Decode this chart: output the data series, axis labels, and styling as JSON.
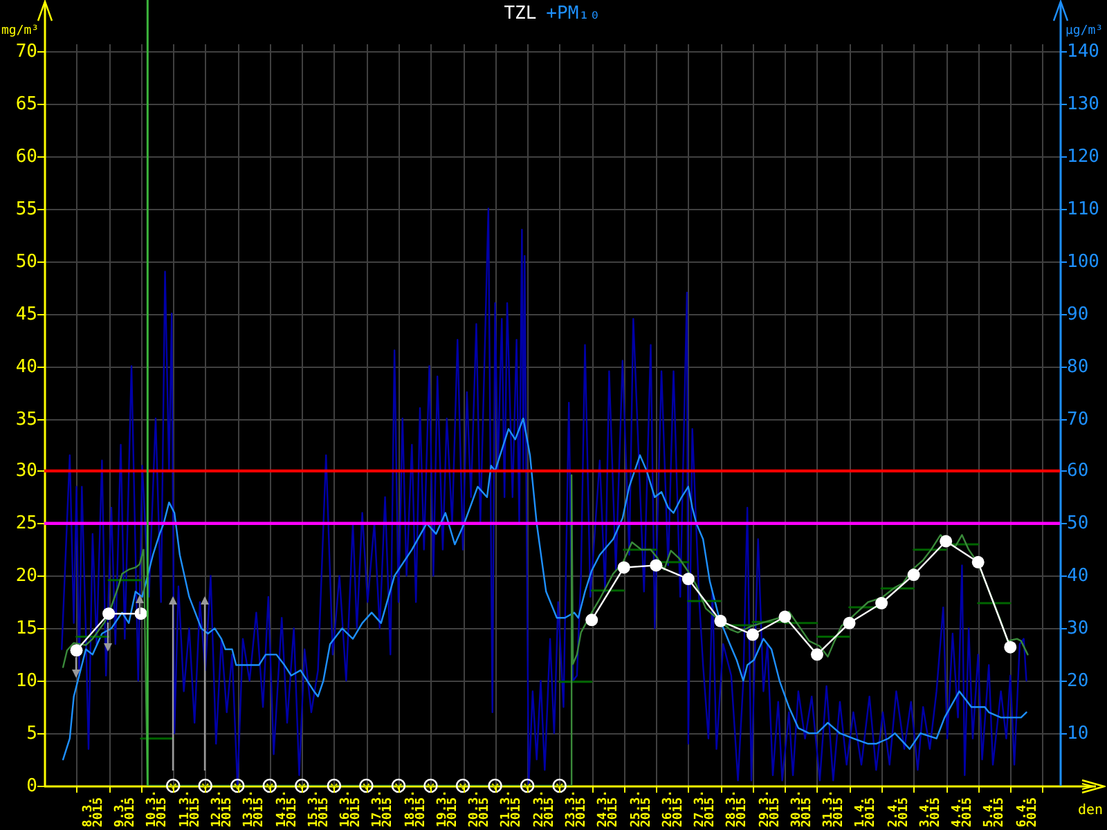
{
  "chart_data": {
    "type": "line",
    "legend": "top",
    "grid": true,
    "xlabel": "den",
    "ylabel": "mg/m³",
    "y2label": "µg/m³",
    "xlim": [
      "2015-03-07T00:00",
      "2015-04-07T13:00"
    ],
    "xticks": [
      {
        "value": "2015-03-08",
        "label": null
      },
      {
        "value": "2015-03-08T12:00",
        "label": "8.3. 2015"
      },
      {
        "value": "2015-03-09",
        "label": null
      },
      {
        "value": "2015-03-09T12:00",
        "label": "9.3. 2015"
      },
      {
        "value": "2015-03-10",
        "label": null
      },
      {
        "value": "2015-03-10T12:00",
        "label": "10.3. 2015"
      },
      {
        "value": "2015-03-11",
        "label": null
      },
      {
        "value": "2015-03-11T12:00",
        "label": "11.3. 2015"
      },
      {
        "value": "2015-03-12",
        "label": null
      },
      {
        "value": "2015-03-12T12:00",
        "label": "12.3. 2015"
      },
      {
        "value": "2015-03-13",
        "label": null
      },
      {
        "value": "2015-03-13T12:00",
        "label": "13.3. 2015"
      },
      {
        "value": "2015-03-14",
        "label": null
      },
      {
        "value": "2015-03-14T12:00",
        "label": "14.3. 2015"
      },
      {
        "value": "2015-03-15",
        "label": null
      },
      {
        "value": "2015-03-15T12:00",
        "label": "15.3. 2015"
      },
      {
        "value": "2015-03-16",
        "label": null
      },
      {
        "value": "2015-03-16T12:00",
        "label": "16.3. 2015"
      },
      {
        "value": "2015-03-17",
        "label": null
      },
      {
        "value": "2015-03-17T12:00",
        "label": "17.3. 2015"
      },
      {
        "value": "2015-03-18",
        "label": null
      },
      {
        "value": "2015-03-18T12:00",
        "label": "18.3. 2015"
      },
      {
        "value": "2015-03-19",
        "label": null
      },
      {
        "value": "2015-03-19T12:00",
        "label": "19.3. 2015"
      },
      {
        "value": "2015-03-20",
        "label": null
      },
      {
        "value": "2015-03-20T12:00",
        "label": "20.3. 2015"
      },
      {
        "value": "2015-03-21",
        "label": null
      },
      {
        "value": "2015-03-21T12:00",
        "label": "21.3. 2015"
      },
      {
        "value": "2015-03-22",
        "label": null
      },
      {
        "value": "2015-03-22T12:00",
        "label": "22.3. 2015"
      },
      {
        "value": "2015-03-23",
        "label": null
      },
      {
        "value": "2015-03-23T12:00",
        "label": "23.3. 2015"
      },
      {
        "value": "2015-03-24",
        "label": null
      },
      {
        "value": "2015-03-24T12:00",
        "label": "24.3. 2015"
      },
      {
        "value": "2015-03-25",
        "label": null
      },
      {
        "value": "2015-03-25T12:00",
        "label": "25.3. 2015"
      },
      {
        "value": "2015-03-26",
        "label": null
      },
      {
        "value": "2015-03-26T12:00",
        "label": "26.3. 2015"
      },
      {
        "value": "2015-03-27",
        "label": null
      },
      {
        "value": "2015-03-27T12:00",
        "label": "27.3. 2015"
      },
      {
        "value": "2015-03-28",
        "label": null
      },
      {
        "value": "2015-03-28T12:00",
        "label": "28.3. 2015"
      },
      {
        "value": "2015-03-29",
        "label": null
      },
      {
        "value": "2015-03-29T12:00",
        "label": "29.3. 2015"
      },
      {
        "value": "2015-03-30",
        "label": null
      },
      {
        "value": "2015-03-30T12:00",
        "label": "30.3. 2015"
      },
      {
        "value": "2015-03-31",
        "label": null
      },
      {
        "value": "2015-03-31T12:00",
        "label": "31.3. 2015"
      },
      {
        "value": "2015-04-01",
        "label": null
      },
      {
        "value": "2015-04-01T12:00",
        "label": "1.4. 2015"
      },
      {
        "value": "2015-04-02",
        "label": null
      },
      {
        "value": "2015-04-02T12:00",
        "label": "2.4. 2015"
      },
      {
        "value": "2015-04-03",
        "label": null
      },
      {
        "value": "2015-04-03T12:00",
        "label": "3.4. 2015"
      },
      {
        "value": "2015-04-04",
        "label": null
      },
      {
        "value": "2015-04-04T12:00",
        "label": "4.4. 2015"
      },
      {
        "value": "2015-04-05",
        "label": null
      },
      {
        "value": "2015-04-05T12:00",
        "label": "5.4. 2015"
      },
      {
        "value": "2015-04-06",
        "label": null
      },
      {
        "value": "2015-04-06T12:00",
        "label": "6.4. 2015"
      },
      {
        "value": "2015-04-07",
        "label": null
      }
    ],
    "ylim": [
      0,
      70
    ],
    "yticks": [
      0,
      5,
      10,
      15,
      20,
      25,
      30,
      35,
      40,
      45,
      50,
      55,
      60,
      65,
      70
    ],
    "y2lim": [
      0,
      140
    ],
    "y2ticks": [
      10,
      20,
      30,
      40,
      50,
      60,
      70,
      80,
      90,
      100,
      110,
      120,
      130,
      140
    ],
    "series": [
      {
        "name": "TZL",
        "color": "#ffffff",
        "marker": "circle",
        "x": [
          "2015-03-08",
          "2015-03-09",
          "2015-03-10",
          "2015-03-11",
          "2015-03-12",
          "2015-03-13",
          "2015-03-14",
          "2015-03-15",
          "2015-03-16",
          "2015-03-17",
          "2015-03-18",
          "2015-03-19",
          "2015-03-20",
          "2015-03-21",
          "2015-03-22",
          "2015-03-23",
          "2015-03-24",
          "2015-03-25",
          "2015-03-26",
          "2015-03-27",
          "2015-03-28",
          "2015-03-29",
          "2015-03-30",
          "2015-03-31",
          "2015-04-01",
          "2015-04-02",
          "2015-04-03",
          "2015-04-04",
          "2015-04-05",
          "2015-04-06"
        ],
        "values": [
          12.9,
          16.4,
          16.4,
          null,
          null,
          null,
          null,
          null,
          null,
          null,
          null,
          null,
          null,
          null,
          null,
          null,
          15.8,
          20.8,
          21.0,
          19.7,
          15.7,
          14.4,
          16.1,
          12.5,
          15.5,
          17.4,
          20.1,
          23.3,
          21.3,
          13.2
        ]
      },
      {
        "type": "scatter",
        "color": "#ffffff",
        "marker": "circle",
        "x": [
          "2015-03-11",
          "2015-03-12",
          "2015-03-13",
          "2015-03-14",
          "2015-03-15",
          "2015-03-16",
          "2015-03-17",
          "2015-03-18",
          "2015-03-19",
          "2015-03-20",
          "2015-03-21",
          "2015-03-22",
          "2015-03-23"
        ],
        "values": [
          0,
          0,
          0,
          0,
          0,
          0,
          0,
          0,
          0,
          0,
          0,
          0,
          0
        ]
      },
      {
        "color": "#3a8a3a",
        "x": [
          "2015-03-07T14:00",
          "2015-03-07T17:00",
          "2015-03-07T22:00",
          "2015-03-08T07:00",
          "2015-03-08T12:00",
          "2015-03-08T21:00",
          "2015-03-09T02:00",
          "2015-03-09T07:00",
          "2015-03-09T10:00",
          "2015-03-09T15:00",
          "2015-03-09T20:00",
          "2015-03-09T23:00",
          "2015-03-10T02:00",
          "2015-03-10T05:00",
          "2015-03-23T09:00",
          "2015-03-23T09:00",
          "2015-03-23T10:00",
          "2015-03-23T13:00",
          "2015-03-23T16:00",
          "2015-03-24T00:00",
          "2015-03-24T06:00",
          "2015-03-24T16:00",
          "2015-03-24T23:00",
          "2015-03-25T06:00",
          "2015-03-25T13:00",
          "2015-03-25T20:00",
          "2015-03-26T01:00",
          "2015-03-26T06:00",
          "2015-03-26T11:00",
          "2015-03-26T17:00",
          "2015-03-27T00:00",
          "2015-03-27T06:00",
          "2015-03-27T13:00",
          "2015-03-27T21:00",
          "2015-03-28T07:00",
          "2015-03-28T13:00",
          "2015-03-28T23:00",
          "2015-03-29T09:00",
          "2015-03-29T20:00",
          "2015-03-30T03:00",
          "2015-03-30T10:00",
          "2015-03-30T18:00",
          "2015-03-31T02:00",
          "2015-03-31T08:00",
          "2015-03-31T13:00",
          "2015-03-31T18:00",
          "2015-04-01T03:00",
          "2015-04-01T14:00",
          "2015-04-02T00:00",
          "2015-04-02T10:00",
          "2015-04-02T16:00",
          "2015-04-02T23:00",
          "2015-04-03T07:00",
          "2015-04-03T13:00",
          "2015-04-03T20:00",
          "2015-04-04T01:00",
          "2015-04-04T07:00",
          "2015-04-04T12:00",
          "2015-04-04T17:00",
          "2015-04-05T00:00",
          "2015-04-05T08:00",
          "2015-04-05T16:00",
          "2015-04-05T22:00",
          "2015-04-06T05:00",
          "2015-04-06T08:00",
          "2015-04-06T13:00"
        ],
        "values": [
          11.3,
          12.9,
          13.6,
          13.4,
          14.0,
          15.6,
          17.1,
          18.9,
          20.2,
          20.6,
          20.8,
          21.1,
          22.5,
          0,
          0,
          29.6,
          11.6,
          12.5,
          14.6,
          16.5,
          17.8,
          20.2,
          21.2,
          23.2,
          22.5,
          22.5,
          21.7,
          20.6,
          22.4,
          21.7,
          20.4,
          19.1,
          16.9,
          16.0,
          14.9,
          14.6,
          15.2,
          15.6,
          16.0,
          16.6,
          15.3,
          13.8,
          13.3,
          12.3,
          13.8,
          15.2,
          16.2,
          17.5,
          17.9,
          18.9,
          19.3,
          20.6,
          21.5,
          22.5,
          23.9,
          23.2,
          22.8,
          23.9,
          22.5,
          21.2,
          18.6,
          16.0,
          13.8,
          14.0,
          13.8,
          12.5
        ]
      },
      {
        "type": "step",
        "color": "#006400",
        "x": [
          "2015-03-08",
          "2015-03-09",
          "2015-03-10",
          "2015-03-11",
          "2015-03-12",
          "2015-03-13",
          "2015-03-14",
          "2015-03-15",
          "2015-03-16",
          "2015-03-17",
          "2015-03-18",
          "2015-03-19",
          "2015-03-20",
          "2015-03-21",
          "2015-03-22",
          "2015-03-23",
          "2015-03-24",
          "2015-03-25",
          "2015-03-26",
          "2015-03-27",
          "2015-03-28",
          "2015-03-29",
          "2015-03-30",
          "2015-03-31",
          "2015-04-01",
          "2015-04-02",
          "2015-04-03",
          "2015-04-04",
          "2015-04-05",
          "2015-04-06"
        ],
        "values": [
          14.2,
          19.6,
          4.5,
          null,
          null,
          null,
          null,
          null,
          null,
          null,
          null,
          null,
          null,
          null,
          null,
          9.9,
          18.6,
          22.5,
          21.3,
          17.6,
          15.3,
          15.6,
          15.5,
          14.2,
          17.0,
          18.8,
          22.5,
          23.0,
          17.4,
          17.4
        ]
      },
      {
        "name": "+PM₁₀",
        "color": "#1e90ff",
        "axis": "y2",
        "x": [
          "2015-03-07T14:00",
          "2015-03-07T19:00",
          "2015-03-07T22:00",
          "2015-03-08T02:00",
          "2015-03-08T07:00",
          "2015-03-08T12:00",
          "2015-03-08T19:00",
          "2015-03-09T02:00",
          "2015-03-09T10:00",
          "2015-03-09T15:00",
          "2015-03-09T20:00",
          "2015-03-10T01:00",
          "2015-03-10T09:00",
          "2015-03-10T14:00",
          "2015-03-10T17:00",
          "2015-03-10T21:00",
          "2015-03-11T01:00",
          "2015-03-11T05:00",
          "2015-03-11T12:00",
          "2015-03-11T21:00",
          "2015-03-12T02:00",
          "2015-03-12T07:00",
          "2015-03-12T12:00",
          "2015-03-12T15:00",
          "2015-03-12T20:00",
          "2015-03-12T23:00",
          "2015-03-13T06:00",
          "2015-03-13T16:00",
          "2015-03-13T21:00",
          "2015-03-14T05:00",
          "2015-03-14T11:00",
          "2015-03-14T16:00",
          "2015-03-14T23:00",
          "2015-03-15T04:00",
          "2015-03-15T09:00",
          "2015-03-15T12:00",
          "2015-03-15T16:00",
          "2015-03-15T21:00",
          "2015-03-16T06:00",
          "2015-03-16T14:00",
          "2015-03-16T21:00",
          "2015-03-17T04:00",
          "2015-03-17T11:00",
          "2015-03-17T21:00",
          "2015-03-18T10:00",
          "2015-03-18T21:00",
          "2015-03-19T04:00",
          "2015-03-19T11:00",
          "2015-03-19T18:00",
          "2015-03-20T01:00",
          "2015-03-20T11:00",
          "2015-03-20T18:00",
          "2015-03-20T21:00",
          "2015-03-21T00:00",
          "2015-03-21T10:00",
          "2015-03-21T15:00",
          "2015-03-21T21:00",
          "2015-03-22T02:00",
          "2015-03-22T07:00",
          "2015-03-22T14:00",
          "2015-03-22T22:00",
          "2015-03-23T04:00",
          "2015-03-23T11:00",
          "2015-03-23T14:00",
          "2015-03-23T19:00",
          "2015-03-24T00:00",
          "2015-03-24T06:00",
          "2015-03-24T16:00",
          "2015-03-24T23:00",
          "2015-03-25T04:00",
          "2015-03-25T12:00",
          "2015-03-25T17:00",
          "2015-03-25T23:00",
          "2015-03-26T04:00",
          "2015-03-26T09:00",
          "2015-03-26T13:00",
          "2015-03-26T19:00",
          "2015-03-27T00:00",
          "2015-03-27T03:00",
          "2015-03-27T06:00",
          "2015-03-27T11:00",
          "2015-03-27T16:00",
          "2015-03-27T23:00",
          "2015-03-28T07:00",
          "2015-03-28T12:00",
          "2015-03-28T17:00",
          "2015-03-28T20:00",
          "2015-03-29T01:00",
          "2015-03-29T08:00",
          "2015-03-29T14:00",
          "2015-03-29T20:00",
          "2015-03-30T03:00",
          "2015-03-30T10:00",
          "2015-03-30T18:00",
          "2015-03-31T00:00",
          "2015-03-31T08:00",
          "2015-03-31T17:00",
          "2015-04-01T03:00",
          "2015-04-01T14:00",
          "2015-04-01T20:00",
          "2015-04-02T05:00",
          "2015-04-02T10:00",
          "2015-04-02T21:00",
          "2015-04-03T05:00",
          "2015-04-03T17:00",
          "2015-04-03T23:00",
          "2015-04-04T10:00",
          "2015-04-04T19:00",
          "2015-04-05T05:00",
          "2015-04-05T08:00",
          "2015-04-05T17:00",
          "2015-04-06T03:00",
          "2015-04-06T08:00",
          "2015-04-06T12:00"
        ],
        "values": [
          5,
          9,
          17,
          21,
          26,
          25,
          29,
          30,
          33,
          31,
          37,
          36,
          44,
          48,
          50,
          54,
          52,
          44,
          36,
          30,
          29,
          30,
          28,
          26,
          26,
          23,
          23,
          23,
          25,
          25,
          23,
          21,
          22,
          20,
          18,
          17,
          20,
          27,
          30,
          28,
          31,
          33,
          31,
          40,
          45,
          50,
          48,
          52,
          46,
          50,
          57,
          55,
          61,
          60,
          68,
          66,
          70,
          63,
          50,
          37,
          32,
          32,
          33,
          32,
          37,
          41,
          44,
          47,
          51,
          57,
          63,
          60,
          55,
          56,
          53,
          52,
          55,
          57,
          53,
          50,
          47,
          39,
          32,
          27,
          24,
          20,
          23,
          24,
          28,
          26,
          20,
          15,
          11,
          10,
          10,
          12,
          10,
          9,
          8,
          8,
          9,
          10,
          7,
          10,
          9,
          13,
          18,
          15,
          15,
          14,
          13,
          13,
          13,
          14
        ]
      },
      {
        "color": "#0000a8",
        "axis": "y2",
        "x": [
          "2015-03-07T13:00",
          "2015-03-07T19:00",
          "2015-03-07T22:00",
          "2015-03-08T00:00",
          "2015-03-08T02:00",
          "2015-03-08T04:00",
          "2015-03-08T07:00",
          "2015-03-08T09:00",
          "2015-03-08T12:00",
          "2015-03-08T15:00",
          "2015-03-08T19:00",
          "2015-03-08T22:00",
          "2015-03-09T02:00",
          "2015-03-09T05:00",
          "2015-03-09T09:00",
          "2015-03-09T12:00",
          "2015-03-09T17:00",
          "2015-03-09T22:00",
          "2015-03-10T01:00",
          "2015-03-10T06:00",
          "2015-03-10T11:00",
          "2015-03-10T15:00",
          "2015-03-10T18:00",
          "2015-03-10T21:00",
          "2015-03-10T23:00",
          "2015-03-11T01:00",
          "2015-03-11T04:00",
          "2015-03-11T08:00",
          "2015-03-11T12:00",
          "2015-03-11T16:00",
          "2015-03-11T20:00",
          "2015-03-12T00:00",
          "2015-03-12T04:00",
          "2015-03-12T08:00",
          "2015-03-12T12:00",
          "2015-03-12T16:00",
          "2015-03-12T20:00",
          "2015-03-13T00:00",
          "2015-03-13T04:00",
          "2015-03-13T09:00",
          "2015-03-13T14:00",
          "2015-03-13T19:00",
          "2015-03-13T23:00",
          "2015-03-14T03:00",
          "2015-03-14T09:00",
          "2015-03-14T13:00",
          "2015-03-14T18:00",
          "2015-03-14T22:00",
          "2015-03-15T02:00",
          "2015-03-15T07:00",
          "2015-03-15T12:00",
          "2015-03-15T18:00",
          "2015-03-15T23:00",
          "2015-03-16T04:00",
          "2015-03-16T09:00",
          "2015-03-16T14:00",
          "2015-03-16T17:00",
          "2015-03-16T21:00",
          "2015-03-17T01:00",
          "2015-03-17T06:00",
          "2015-03-17T10:00",
          "2015-03-17T14:00",
          "2015-03-17T18:00",
          "2015-03-17T21:00",
          "2015-03-18T00:00",
          "2015-03-18T03:00",
          "2015-03-18T06:00",
          "2015-03-18T10:00",
          "2015-03-18T13:00",
          "2015-03-18T16:00",
          "2015-03-18T19:00",
          "2015-03-18T23:00",
          "2015-03-19T02:00",
          "2015-03-19T05:00",
          "2015-03-19T09:00",
          "2015-03-19T12:00",
          "2015-03-19T16:00",
          "2015-03-19T20:00",
          "2015-03-20T00:00",
          "2015-03-20T03:00",
          "2015-03-20T06:00",
          "2015-03-20T10:00",
          "2015-03-20T13:00",
          "2015-03-20T16:00",
          "2015-03-20T19:00",
          "2015-03-20T22:00",
          "2015-03-21T00:00",
          "2015-03-21T02:00",
          "2015-03-21T05:00",
          "2015-03-21T07:00",
          "2015-03-21T09:00",
          "2015-03-21T13:00",
          "2015-03-21T16:00",
          "2015-03-21T18:00",
          "2015-03-21T20:00",
          "2015-03-21T21:00",
          "2015-03-21T22:00",
          "2015-03-22T01:00",
          "2015-03-22T04:00",
          "2015-03-22T07:00",
          "2015-03-22T10:00",
          "2015-03-22T13:00",
          "2015-03-22T17:00",
          "2015-03-22T20:00",
          "2015-03-22T23:00",
          "2015-03-23T03:00",
          "2015-03-23T07:00",
          "2015-03-23T10:00",
          "2015-03-23T13:00",
          "2015-03-23T16:00",
          "2015-03-23T19:00",
          "2015-03-23T23:00",
          "2015-03-24T06:00",
          "2015-03-24T10:00",
          "2015-03-24T13:00",
          "2015-03-24T18:00",
          "2015-03-24T23:00",
          "2015-03-25T04:00",
          "2015-03-25T07:00",
          "2015-03-25T15:00",
          "2015-03-25T20:00",
          "2015-03-25T23:00",
          "2015-03-26T04:00",
          "2015-03-26T09:00",
          "2015-03-26T13:00",
          "2015-03-26T18:00",
          "2015-03-26T23:00",
          "2015-03-27T00:00",
          "2015-03-27T03:00",
          "2015-03-27T08:00",
          "2015-03-27T11:00",
          "2015-03-27T15:00",
          "2015-03-27T18:00",
          "2015-03-27T21:00",
          "2015-03-28T02:00",
          "2015-03-28T08:00",
          "2015-03-28T13:00",
          "2015-03-28T17:00",
          "2015-03-28T20:00",
          "2015-03-28T23:00",
          "2015-03-29T04:00",
          "2015-03-29T08:00",
          "2015-03-29T11:00",
          "2015-03-29T15:00",
          "2015-03-29T19:00",
          "2015-03-29T22:00",
          "2015-03-30T03:00",
          "2015-03-30T06:00",
          "2015-03-30T10:00",
          "2015-03-30T15:00",
          "2015-03-30T20:00",
          "2015-03-31T02:00",
          "2015-03-31T07:00",
          "2015-03-31T12:00",
          "2015-03-31T17:00",
          "2015-03-31T22:00",
          "2015-04-01T03:00",
          "2015-04-01T09:00",
          "2015-04-01T15:00",
          "2015-04-01T20:00",
          "2015-04-02T01:00",
          "2015-04-02T06:00",
          "2015-04-02T11:00",
          "2015-04-02T17:00",
          "2015-04-02T22:00",
          "2015-04-03T03:00",
          "2015-04-03T07:00",
          "2015-04-03T12:00",
          "2015-04-03T17:00",
          "2015-04-03T22:00",
          "2015-04-04T01:00",
          "2015-04-04T05:00",
          "2015-04-04T09:00",
          "2015-04-04T12:00",
          "2015-04-04T14:00",
          "2015-04-04T17:00",
          "2015-04-04T20:00",
          "2015-04-05T00:00",
          "2015-04-05T03:00",
          "2015-04-05T08:00",
          "2015-04-05T11:00",
          "2015-04-05T17:00",
          "2015-04-05T21:00",
          "2015-04-06T00:00",
          "2015-04-06T03:00",
          "2015-04-06T07:00",
          "2015-04-06T10:00",
          "2015-04-06T12:00"
        ],
        "values": [
          26,
          63,
          31,
          57,
          21,
          57,
          29,
          7,
          48,
          27,
          62,
          21,
          53,
          27,
          65,
          28,
          80,
          20,
          61,
          36,
          70,
          35,
          98,
          60,
          90,
          10,
          38,
          18,
          30,
          12,
          35,
          22,
          40,
          8,
          28,
          14,
          25,
          0,
          28,
          20,
          33,
          15,
          36,
          6,
          32,
          12,
          30,
          2,
          26,
          14,
          22,
          63,
          25,
          40,
          20,
          50,
          30,
          52,
          35,
          50,
          30,
          55,
          25,
          83,
          35,
          70,
          40,
          65,
          35,
          72,
          45,
          80,
          40,
          78,
          45,
          70,
          50,
          85,
          45,
          75,
          55,
          88,
          50,
          80,
          110,
          14,
          92,
          60,
          89,
          55,
          92,
          55,
          85,
          50,
          106,
          60,
          101,
          0,
          18,
          5,
          20,
          3,
          28,
          10,
          35,
          15,
          73,
          20,
          21,
          40,
          84,
          36,
          62,
          37,
          79,
          41,
          81,
          44,
          89,
          37,
          84,
          30,
          79,
          42,
          79,
          36,
          94,
          8,
          68,
          36,
          23,
          9,
          37,
          7,
          27,
          21,
          1,
          20,
          53,
          1,
          47,
          18,
          27,
          2,
          16,
          1,
          14,
          2,
          18,
          9,
          17,
          1,
          19,
          1,
          16,
          4,
          14,
          4,
          17,
          3,
          14,
          4,
          18,
          7,
          16,
          3,
          15,
          7,
          18,
          34,
          9,
          29,
          13,
          42,
          2,
          30,
          9,
          25,
          5,
          23,
          4,
          18,
          9,
          21,
          4,
          27,
          28,
          20
        ]
      }
    ],
    "ref_lines": [
      {
        "axis": "y",
        "value": 30,
        "color": "#ff0000"
      },
      {
        "axis": "y2",
        "value": 50,
        "color": "#ff00ff"
      },
      {
        "axis": "x",
        "value": "2015-03-10T05:00",
        "color": "#3cb43c"
      }
    ]
  }
}
